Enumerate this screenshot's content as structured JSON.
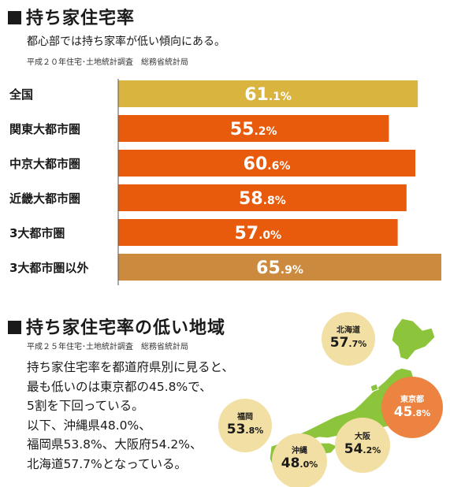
{
  "section1": {
    "title": "持ち家住宅率",
    "subtitle": "都心部では持ち家率が低い傾向にある。",
    "source": "平成２０年住宅･土地統計調査　総務省統計局"
  },
  "chart_data": {
    "type": "bar",
    "orientation": "horizontal",
    "categories": [
      "全国",
      "関東大都市圏",
      "中京大都市圏",
      "近畿大都市圏",
      "3大都市圏",
      "3大都市圏以外"
    ],
    "values": [
      61.1,
      55.2,
      60.6,
      58.8,
      57.0,
      65.9
    ],
    "value_int": [
      "61",
      "55",
      "60",
      "58",
      "57",
      "65"
    ],
    "value_dec": [
      ".1%",
      ".2%",
      ".6%",
      ".8%",
      ".0%",
      ".9%"
    ],
    "colors": [
      "#d9b43f",
      "#e85a0c",
      "#e85a0c",
      "#e85a0c",
      "#e85a0c",
      "#cc8a3e"
    ],
    "title": "持ち家住宅率",
    "xlabel": "",
    "ylabel": "",
    "xlim": [
      0,
      65.9
    ],
    "grid": false,
    "legend": "none"
  },
  "section2": {
    "title": "持ち家住宅率の低い地域",
    "source": "平成２５年住宅･土地統計調査　総務省統計局",
    "lines": [
      "持ち家住宅率を都道府県別に見ると、",
      "最も低いのは東京都の45.8%で、",
      "5割を下回っている。",
      "以下、沖縄県48.0%、",
      "福岡県53.8%、大阪府54.2%、",
      "北海道57.7%となっている。"
    ]
  },
  "regions": {
    "hokkaido": {
      "name": "北海道",
      "int": "57",
      "dec": ".7%"
    },
    "tokyo": {
      "name": "東京都",
      "int": "45",
      "dec": ".8%"
    },
    "fukuoka": {
      "name": "福岡",
      "int": "53",
      "dec": ".8%"
    },
    "osaka": {
      "name": "大阪",
      "int": "54",
      "dec": ".2%"
    },
    "okinawa": {
      "name": "沖縄",
      "int": "48",
      "dec": ".0%"
    }
  },
  "colors": {
    "map": "#8cc43c",
    "bubble": "#f2dfa3",
    "bubble_highlight": "#ec8340"
  },
  "icons": {
    "map": "japan-map-icon"
  }
}
